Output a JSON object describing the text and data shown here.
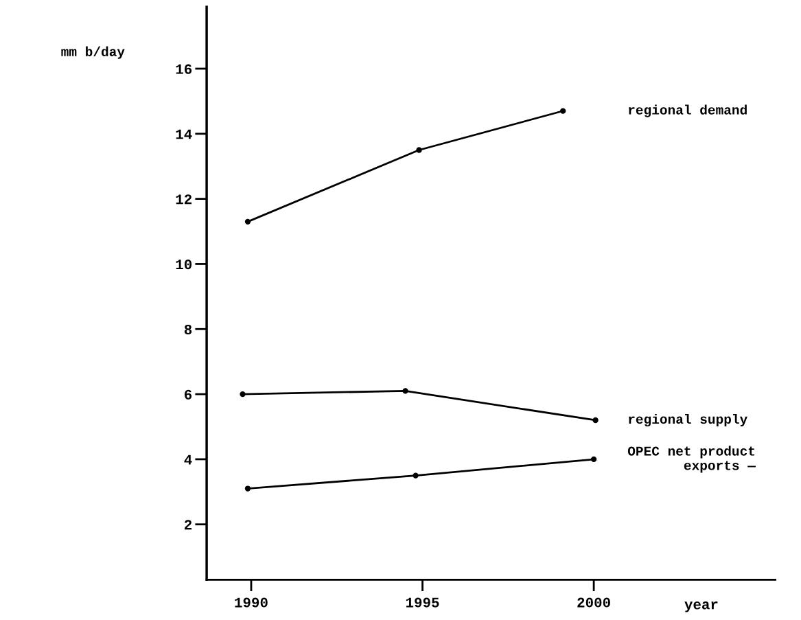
{
  "chart_data": {
    "type": "line",
    "ylabel": "mm b/day",
    "xlabel": "year",
    "xlim": [
      1988.7,
      2005.3
    ],
    "xticks": [
      1990,
      1995,
      2000
    ],
    "ylim": [
      0.3,
      17.9
    ],
    "yticks": [
      2,
      4,
      6,
      8,
      10,
      12,
      14,
      16
    ],
    "grid": false,
    "legend": false,
    "marker": "circle",
    "line_style": "solid",
    "series": [
      {
        "name": "regional demand",
        "color": "#000000",
        "x": [
          1989.9,
          1994.9,
          1999.1
        ],
        "values": [
          11.3,
          13.5,
          14.7
        ]
      },
      {
        "name": "regional supply",
        "color": "#000000",
        "x": [
          1989.75,
          1994.5,
          2000.05
        ],
        "values": [
          6.0,
          6.1,
          5.2
        ]
      },
      {
        "name": "OPEC net product\nexports —",
        "color": "#000000",
        "x": [
          1989.9,
          1994.8,
          2000.0
        ],
        "values": [
          3.1,
          3.5,
          4.0
        ]
      }
    ]
  }
}
